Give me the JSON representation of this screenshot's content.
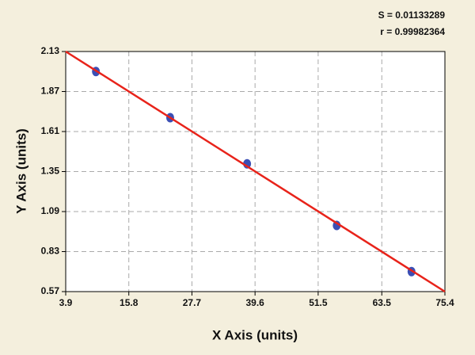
{
  "chart_data": {
    "type": "scatter",
    "annotations": [
      "S = 0.01133289",
      "r = 0.99982364"
    ],
    "xlabel": "X Axis (units)",
    "ylabel": "Y Axis (units)",
    "xlim": [
      3.9,
      75.4
    ],
    "ylim": [
      0.57,
      2.13
    ],
    "xticks": [
      3.9,
      15.8,
      27.7,
      39.6,
      51.5,
      63.5,
      75.4
    ],
    "yticks": [
      0.57,
      0.83,
      1.09,
      1.35,
      1.61,
      1.87,
      2.13
    ],
    "grid": true,
    "series": [
      {
        "color": "#3b4fb5",
        "x": [
          9.6,
          23.6,
          38.1,
          55.0,
          69.1
        ],
        "values": [
          2.0,
          1.7,
          1.4,
          1.0,
          0.7
        ]
      }
    ],
    "fit_line": {
      "color": "#e8231a",
      "x": [
        3.9,
        75.4
      ],
      "values": [
        2.13,
        0.57
      ]
    }
  }
}
